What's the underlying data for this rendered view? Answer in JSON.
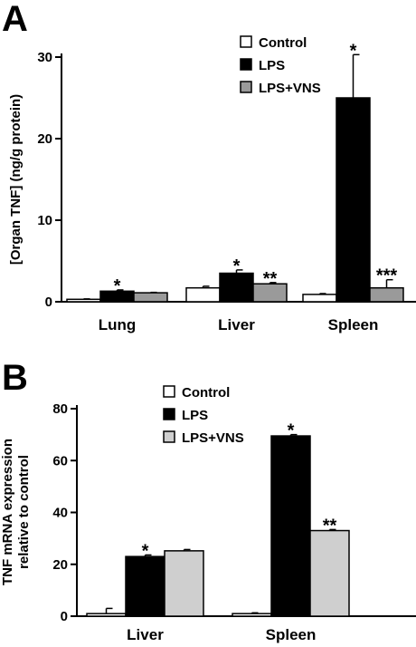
{
  "chart_data": [
    {
      "panel": "A",
      "type": "bar",
      "ylabel": "[Organ TNF] (ng/g protein)",
      "ylim": [
        0,
        30
      ],
      "yticks": [
        "0",
        "10",
        "20",
        "30"
      ],
      "categories": [
        "Lung",
        "Liver",
        "Spleen"
      ],
      "series": [
        {
          "name": "Control",
          "color": "#ffffff",
          "values": [
            0.3,
            1.7,
            0.9
          ],
          "errors": [
            0.05,
            0.2,
            0.1
          ]
        },
        {
          "name": "LPS",
          "color": "#000000",
          "values": [
            1.3,
            3.5,
            25.0
          ],
          "errors": [
            0.15,
            0.4,
            5.3
          ]
        },
        {
          "name": "LPS+VNS",
          "color": "#9a9a9a",
          "values": [
            1.1,
            2.2,
            1.7
          ],
          "errors": [
            0.05,
            0.15,
            1.0
          ]
        }
      ],
      "annotations": [
        {
          "category": "Lung",
          "series": "LPS",
          "text": "*"
        },
        {
          "category": "Liver",
          "series": "LPS",
          "text": "*"
        },
        {
          "category": "Liver",
          "series": "LPS+VNS",
          "text": "**"
        },
        {
          "category": "Spleen",
          "series": "LPS",
          "text": "*"
        },
        {
          "category": "Spleen",
          "series": "LPS+VNS",
          "text": "***"
        }
      ],
      "legend": "top-right"
    },
    {
      "panel": "B",
      "type": "bar",
      "ylabel": [
        "TNF mRNA expression",
        "relative to control"
      ],
      "ylim": [
        0,
        80
      ],
      "yticks": [
        "0",
        "20",
        "40",
        "60",
        "80"
      ],
      "categories": [
        "Liver",
        "Spleen"
      ],
      "series": [
        {
          "name": "Control",
          "color": "#ffffff",
          "values": [
            1.0,
            1.0
          ],
          "errors": [
            2.0,
            0.3
          ]
        },
        {
          "name": "LPS",
          "color": "#000000",
          "values": [
            23.0,
            69.5
          ],
          "errors": [
            0.6,
            0.5
          ]
        },
        {
          "name": "LPS+VNS",
          "color": "#cfcfcf",
          "values": [
            25.2,
            33.0
          ],
          "errors": [
            0.5,
            0.4
          ]
        }
      ],
      "annotations": [
        {
          "category": "Liver",
          "series": "LPS",
          "text": "*"
        },
        {
          "category": "Spleen",
          "series": "LPS",
          "text": "*"
        },
        {
          "category": "Spleen",
          "series": "LPS+VNS",
          "text": "**"
        }
      ],
      "legend": "top-left"
    }
  ]
}
